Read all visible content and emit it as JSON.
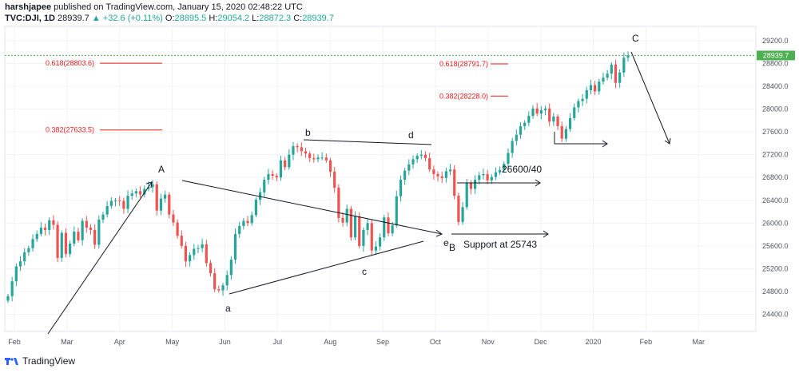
{
  "header": {
    "author": "harshjapee",
    "published_text": "published on TradingView.com, January 15, 2020 02:48:22 UTC",
    "symbol": "TVC:DJI, 1D",
    "last": "28939.7",
    "change": "+32.6 (+0.11%)",
    "o_label": "O:",
    "o": "28895.5",
    "h_label": "H:",
    "h": "29054.2",
    "l_label": "L:",
    "l": "28872.3",
    "c_label": "C:",
    "c": "28939.7"
  },
  "footer": {
    "brand": "TradingView",
    "logo_icon": "tradingview-logo-icon"
  },
  "colors": {
    "up": "#26a69a",
    "down": "#ef5350",
    "fib": "#e91e1e",
    "price_line": "#4caf50",
    "grid": "#f0f3fa",
    "axis_text": "#4c525e"
  },
  "chart_data": {
    "type": "candlestick",
    "price_tag": "28939.7",
    "y_ticks": [
      "29200.0",
      "28800.0",
      "28400.0",
      "28000.0",
      "27600.0",
      "27200.0",
      "26800.0",
      "26400.0",
      "26000.0",
      "25600.0",
      "25200.0",
      "24800.0",
      "24400.0"
    ],
    "x_ticks": [
      "Feb",
      "Mar",
      "Apr",
      "May",
      "Jun",
      "Jul",
      "Aug",
      "Sep",
      "Oct",
      "Nov",
      "Dec",
      "2020",
      "Feb",
      "Mar"
    ],
    "ylim": [
      24100,
      29450
    ],
    "fib_levels": [
      {
        "label": "0.618(28803.6)",
        "value": 28803.6
      },
      {
        "label": "0.382(27633.5)",
        "value": 27633.5
      },
      {
        "label": "0.618(28791.7)",
        "value": 28791.7
      },
      {
        "label": "0.382(28228.0)",
        "value": 28228.0
      }
    ],
    "wave_labels": [
      "A",
      "a",
      "b",
      "c",
      "d",
      "e",
      "B",
      "C"
    ],
    "annotations": [
      "26600/40",
      "Support at 25743"
    ],
    "closes": [
      24720,
      24980,
      25240,
      25330,
      25490,
      25560,
      25720,
      25810,
      25920,
      25880,
      26050,
      25970,
      25390,
      25830,
      25460,
      25640,
      25850,
      25700,
      26040,
      25920,
      25880,
      25620,
      26060,
      26150,
      26300,
      26390,
      26400,
      26390,
      26250,
      26480,
      26520,
      26560,
      26500,
      26600,
      26630,
      26680,
      26220,
      26430,
      26500,
      26150,
      26010,
      25780,
      25600,
      25330,
      25440,
      25550,
      25560,
      25630,
      25300,
      25120,
      24840,
      24820,
      24910,
      25090,
      25360,
      25810,
      25950,
      26040,
      26000,
      26140,
      26410,
      26540,
      26760,
      26860,
      26830,
      26800,
      27100,
      26980,
      27200,
      27350,
      27330,
      27260,
      27220,
      27140,
      27120,
      27150,
      27150,
      27100,
      26900,
      26620,
      26090,
      26010,
      26250,
      25750,
      26120,
      25600,
      25880,
      26000,
      25520,
      25590,
      25750,
      26100,
      25820,
      25960,
      26470,
      26760,
      26920,
      27030,
      27120,
      27180,
      27200,
      27140,
      26940,
      26860,
      26820,
      26790,
      26910,
      26940,
      26480,
      26020,
      26280,
      26710,
      26600,
      26760,
      26840,
      26860,
      26750,
      26810,
      26890,
      26930,
      27040,
      27230,
      27440,
      27550,
      27700,
      27760,
      27880,
      28010,
      27920,
      27980,
      28010,
      27780,
      27870,
      27700,
      27480,
      27650,
      27840,
      28030,
      28140,
      28180,
      28330,
      28420,
      28310,
      28480,
      28550,
      28620,
      28780,
      28460,
      28640,
      28900,
      28940
    ]
  }
}
